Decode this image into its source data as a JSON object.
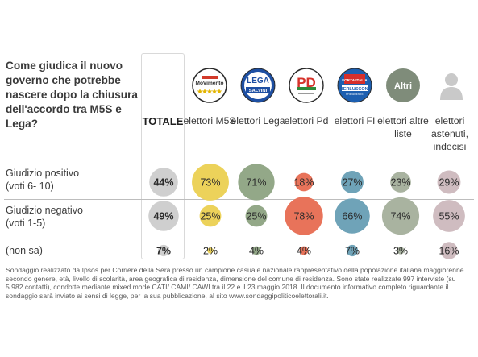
{
  "question": "Come giudica il nuovo governo che potrebbe nascere dopo la chiusura dell'accordo tra M5S e Lega?",
  "columns": [
    {
      "key": "totale",
      "label": "TOTALE"
    },
    {
      "key": "m5s",
      "label": "elettori M5S",
      "logo": "movimento-5-stelle-logo"
    },
    {
      "key": "lega",
      "label": "elettori Lega",
      "logo": "lega-salvini-logo"
    },
    {
      "key": "pd",
      "label": "elettori Pd",
      "logo": "pd-logo"
    },
    {
      "key": "fi",
      "label": "elettori FI",
      "logo": "forza-italia-logo"
    },
    {
      "key": "altre",
      "label": "elettori altre liste",
      "logo": "altri-logo"
    },
    {
      "key": "astenuti",
      "label": "elettori astenuti, indecisi",
      "logo": "person-icon"
    }
  ],
  "logos": {
    "m5s_text": "MoVimento",
    "lega_text": "LEGA",
    "lega_sub": "SALVINI",
    "pd_text": "PD",
    "fi_text1": "FORZA ITALIA",
    "fi_text2": "BERLUSCONI",
    "fi_text3": "PRESIDENTE",
    "altri_text": "Altri"
  },
  "colors": {
    "m5s": "#ecd25a",
    "lega": "#93a888",
    "pd": "#e8735a",
    "fi": "#6fa3b8",
    "altre": "#a9b3a0",
    "astenuti": "#cfbcc0",
    "totale": "#cfcfcf"
  },
  "chart_data": {
    "type": "table",
    "unit": "%",
    "rows": [
      {
        "label": "Giudizio positivo (voti 6-10)",
        "values": [
          44,
          73,
          71,
          18,
          27,
          23,
          29
        ]
      },
      {
        "label": "Giudizio negativo (voti 1-5)",
        "values": [
          49,
          25,
          25,
          78,
          66,
          74,
          55
        ]
      },
      {
        "label": "(non sa)",
        "values": [
          7,
          2,
          4,
          4,
          7,
          3,
          16
        ]
      }
    ]
  },
  "row_labels": [
    {
      "line1": "Giudizio positivo",
      "line2": "(voti 6- 10)"
    },
    {
      "line1": "Giudizio negativo",
      "line2": "(voti 1-5)"
    },
    {
      "line1": "(non sa)",
      "line2": ""
    }
  ],
  "footnote": "Sondaggio realizzato da Ipsos per Corriere della Sera presso un campione casuale nazionale rappresentativo della popolazione italiana maggiorenne secondo genere, età, livello di scolarità, area geografica di residenza, dimensione del comune di residenza. Sono state realizzate 997 interviste (su 5.982 contatti), condotte mediante mixed mode CATI/ CAMI/ CAWI tra il 22 e il 23 maggio 2018. Il documento informativo completo riguardante il sondaggio sarà inviato ai sensi di legge, per la sua pubblicazione, al sito www.sondaggipoliticoelettorali.it."
}
